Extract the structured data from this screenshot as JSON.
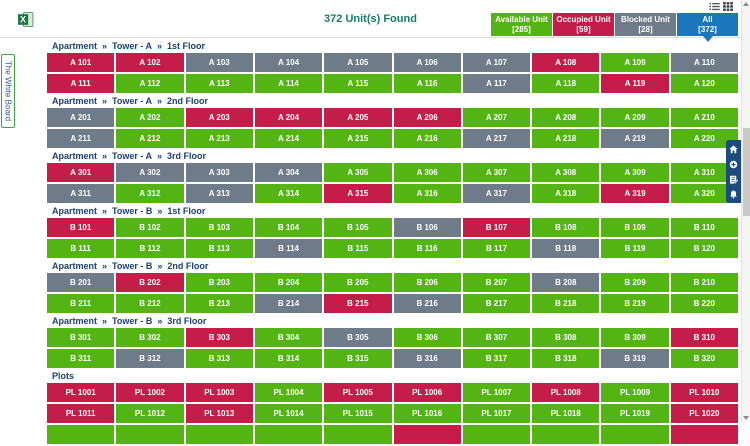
{
  "title_bar": {
    "found_text": "372 Unit(s) Found",
    "legend": [
      {
        "label": "Available Unit",
        "count": "[285]",
        "status": "available",
        "selected": false
      },
      {
        "label": "Occupied Unit",
        "count": "[59]",
        "status": "occupied",
        "selected": false
      },
      {
        "label": "Blocked Unit",
        "count": "[28]",
        "status": "blocked",
        "selected": false
      },
      {
        "label": "All",
        "count": "[372]",
        "status": "all",
        "selected": true
      }
    ]
  },
  "side_tab": {
    "label": "The White Board"
  },
  "colors": {
    "available": "#54b414",
    "occupied": "#c41d4a",
    "blocked": "#6f7b88",
    "all": "#1c76bb",
    "title": "#177c6a",
    "breadcrumb": "#1d3f72",
    "toolbar_bg": "#1c4b7d"
  },
  "icons": {
    "export": "excel-icon",
    "list_view": "list-view-icon",
    "grid_view": "grid-view-icon",
    "fab": [
      "home-icon",
      "add-circle-icon",
      "edit-note-icon",
      "bell-icon"
    ],
    "scroll": [
      "scroll-up-icon",
      "scroll-down-icon"
    ]
  },
  "sections": [
    {
      "breadcrumb": [
        "Apartment",
        "Tower - A",
        "1st Floor"
      ],
      "rows": [
        [
          {
            "label": "A 101",
            "status": "occupied"
          },
          {
            "label": "A 102",
            "status": "occupied"
          },
          {
            "label": "A 103",
            "status": "blocked"
          },
          {
            "label": "A 104",
            "status": "blocked"
          },
          {
            "label": "A 105",
            "status": "blocked"
          },
          {
            "label": "A 106",
            "status": "blocked"
          },
          {
            "label": "A 107",
            "status": "blocked"
          },
          {
            "label": "A 108",
            "status": "occupied"
          },
          {
            "label": "A 109",
            "status": "available"
          },
          {
            "label": "A 110",
            "status": "blocked"
          }
        ],
        [
          {
            "label": "A 111",
            "status": "occupied"
          },
          {
            "label": "A 112",
            "status": "available"
          },
          {
            "label": "A 113",
            "status": "available"
          },
          {
            "label": "A 114",
            "status": "available"
          },
          {
            "label": "A 115",
            "status": "available"
          },
          {
            "label": "A 116",
            "status": "available"
          },
          {
            "label": "A 117",
            "status": "blocked"
          },
          {
            "label": "A 118",
            "status": "available"
          },
          {
            "label": "A 119",
            "status": "occupied"
          },
          {
            "label": "A 120",
            "status": "available"
          }
        ]
      ]
    },
    {
      "breadcrumb": [
        "Apartment",
        "Tower - A",
        "2nd Floor"
      ],
      "rows": [
        [
          {
            "label": "A 201",
            "status": "blocked"
          },
          {
            "label": "A 202",
            "status": "available"
          },
          {
            "label": "A 203",
            "status": "occupied"
          },
          {
            "label": "A 204",
            "status": "occupied"
          },
          {
            "label": "A 205",
            "status": "occupied"
          },
          {
            "label": "A 206",
            "status": "occupied"
          },
          {
            "label": "A 207",
            "status": "available"
          },
          {
            "label": "A 208",
            "status": "available"
          },
          {
            "label": "A 209",
            "status": "available"
          },
          {
            "label": "A 210",
            "status": "available"
          }
        ],
        [
          {
            "label": "A 211",
            "status": "blocked"
          },
          {
            "label": "A 212",
            "status": "available"
          },
          {
            "label": "A 213",
            "status": "available"
          },
          {
            "label": "A 214",
            "status": "available"
          },
          {
            "label": "A 215",
            "status": "available"
          },
          {
            "label": "A 216",
            "status": "available"
          },
          {
            "label": "A 217",
            "status": "blocked"
          },
          {
            "label": "A 218",
            "status": "available"
          },
          {
            "label": "A 219",
            "status": "blocked"
          },
          {
            "label": "A 220",
            "status": "available"
          }
        ]
      ]
    },
    {
      "breadcrumb": [
        "Apartment",
        "Tower - A",
        "3rd Floor"
      ],
      "rows": [
        [
          {
            "label": "A 301",
            "status": "occupied"
          },
          {
            "label": "A 302",
            "status": "blocked"
          },
          {
            "label": "A 303",
            "status": "blocked"
          },
          {
            "label": "A 304",
            "status": "blocked"
          },
          {
            "label": "A 305",
            "status": "available"
          },
          {
            "label": "A 306",
            "status": "available"
          },
          {
            "label": "A 307",
            "status": "available"
          },
          {
            "label": "A 308",
            "status": "available"
          },
          {
            "label": "A 309",
            "status": "available"
          },
          {
            "label": "A 310",
            "status": "available"
          }
        ],
        [
          {
            "label": "A 311",
            "status": "blocked"
          },
          {
            "label": "A 312",
            "status": "available"
          },
          {
            "label": "A 313",
            "status": "blocked"
          },
          {
            "label": "A 314",
            "status": "available"
          },
          {
            "label": "A 315",
            "status": "occupied"
          },
          {
            "label": "A 316",
            "status": "available"
          },
          {
            "label": "A 317",
            "status": "blocked"
          },
          {
            "label": "A 318",
            "status": "available"
          },
          {
            "label": "A 319",
            "status": "occupied"
          },
          {
            "label": "A 320",
            "status": "available"
          }
        ]
      ]
    },
    {
      "breadcrumb": [
        "Apartment",
        "Tower - B",
        "1st Floor"
      ],
      "rows": [
        [
          {
            "label": "B 101",
            "status": "occupied"
          },
          {
            "label": "B 102",
            "status": "available"
          },
          {
            "label": "B 103",
            "status": "available"
          },
          {
            "label": "B 104",
            "status": "available"
          },
          {
            "label": "B 105",
            "status": "available"
          },
          {
            "label": "B 106",
            "status": "blocked"
          },
          {
            "label": "B 107",
            "status": "occupied"
          },
          {
            "label": "B 108",
            "status": "available"
          },
          {
            "label": "B 109",
            "status": "available"
          },
          {
            "label": "B 110",
            "status": "available"
          }
        ],
        [
          {
            "label": "B 111",
            "status": "available"
          },
          {
            "label": "B 112",
            "status": "available"
          },
          {
            "label": "B 113",
            "status": "available"
          },
          {
            "label": "B 114",
            "status": "blocked"
          },
          {
            "label": "B 115",
            "status": "available"
          },
          {
            "label": "B 116",
            "status": "available"
          },
          {
            "label": "B 117",
            "status": "available"
          },
          {
            "label": "B 118",
            "status": "blocked"
          },
          {
            "label": "B 119",
            "status": "available"
          },
          {
            "label": "B 120",
            "status": "available"
          }
        ]
      ]
    },
    {
      "breadcrumb": [
        "Apartment",
        "Tower - B",
        "2nd Floor"
      ],
      "rows": [
        [
          {
            "label": "B 201",
            "status": "blocked"
          },
          {
            "label": "B 202",
            "status": "occupied"
          },
          {
            "label": "B 203",
            "status": "available"
          },
          {
            "label": "B 204",
            "status": "available"
          },
          {
            "label": "B 205",
            "status": "available"
          },
          {
            "label": "B 206",
            "status": "available"
          },
          {
            "label": "B 207",
            "status": "available"
          },
          {
            "label": "B 208",
            "status": "blocked"
          },
          {
            "label": "B 209",
            "status": "available"
          },
          {
            "label": "B 210",
            "status": "available"
          }
        ],
        [
          {
            "label": "B 211",
            "status": "available"
          },
          {
            "label": "B 212",
            "status": "available"
          },
          {
            "label": "B 213",
            "status": "available"
          },
          {
            "label": "B 214",
            "status": "blocked"
          },
          {
            "label": "B 215",
            "status": "occupied"
          },
          {
            "label": "B 216",
            "status": "blocked"
          },
          {
            "label": "B 217",
            "status": "available"
          },
          {
            "label": "B 218",
            "status": "available"
          },
          {
            "label": "B 219",
            "status": "available"
          },
          {
            "label": "B 220",
            "status": "available"
          }
        ]
      ]
    },
    {
      "breadcrumb": [
        "Apartment",
        "Tower - B",
        "3rd Floor"
      ],
      "rows": [
        [
          {
            "label": "B 301",
            "status": "available"
          },
          {
            "label": "B 302",
            "status": "available"
          },
          {
            "label": "B 303",
            "status": "occupied"
          },
          {
            "label": "B 304",
            "status": "available"
          },
          {
            "label": "B 305",
            "status": "blocked"
          },
          {
            "label": "B 306",
            "status": "available"
          },
          {
            "label": "B 307",
            "status": "available"
          },
          {
            "label": "B 308",
            "status": "available"
          },
          {
            "label": "B 309",
            "status": "available"
          },
          {
            "label": "B 310",
            "status": "occupied"
          }
        ],
        [
          {
            "label": "B 311",
            "status": "available"
          },
          {
            "label": "B 312",
            "status": "blocked"
          },
          {
            "label": "B 313",
            "status": "available"
          },
          {
            "label": "B 314",
            "status": "available"
          },
          {
            "label": "B 315",
            "status": "available"
          },
          {
            "label": "B 316",
            "status": "blocked"
          },
          {
            "label": "B 317",
            "status": "available"
          },
          {
            "label": "B 318",
            "status": "available"
          },
          {
            "label": "B 319",
            "status": "blocked"
          },
          {
            "label": "B 320",
            "status": "available"
          }
        ]
      ]
    },
    {
      "breadcrumb": [
        "Plots"
      ],
      "rows": [
        [
          {
            "label": "PL 1001",
            "status": "occupied"
          },
          {
            "label": "PL 1002",
            "status": "occupied"
          },
          {
            "label": "PL 1003",
            "status": "occupied"
          },
          {
            "label": "PL 1004",
            "status": "available"
          },
          {
            "label": "PL 1005",
            "status": "occupied"
          },
          {
            "label": "PL 1006",
            "status": "occupied"
          },
          {
            "label": "PL 1007",
            "status": "available"
          },
          {
            "label": "PL 1008",
            "status": "occupied"
          },
          {
            "label": "PL 1009",
            "status": "available"
          },
          {
            "label": "PL 1010",
            "status": "occupied"
          }
        ],
        [
          {
            "label": "PL 1011",
            "status": "occupied"
          },
          {
            "label": "PL 1012",
            "status": "available"
          },
          {
            "label": "PL 1013",
            "status": "occupied"
          },
          {
            "label": "PL 1014",
            "status": "available"
          },
          {
            "label": "PL 1015",
            "status": "available"
          },
          {
            "label": "PL 1016",
            "status": "available"
          },
          {
            "label": "PL 1017",
            "status": "available"
          },
          {
            "label": "PL 1018",
            "status": "available"
          },
          {
            "label": "PL 1019",
            "status": "available"
          },
          {
            "label": "PL 1020",
            "status": "occupied"
          }
        ]
      ]
    }
  ],
  "partial_row_statuses": [
    "available",
    "available",
    "available",
    "available",
    "available",
    "occupied",
    "available",
    "available",
    "available",
    "occupied"
  ]
}
